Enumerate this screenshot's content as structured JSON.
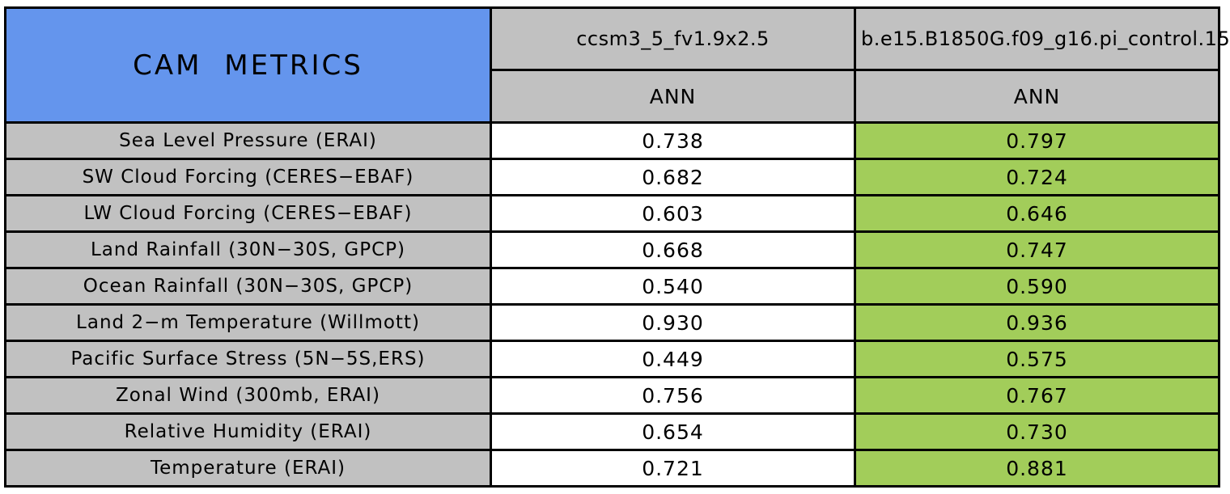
{
  "table": {
    "title": "CAM METRICS",
    "columns": [
      {
        "model": "ccsm3_5_fv1.9x2.5",
        "season": "ANN"
      },
      {
        "model": "b.e15.B1850G.f09_g16.pi_control.15",
        "season": "ANN"
      }
    ],
    "rows": [
      {
        "metric": "Sea Level Pressure (ERAI)",
        "values": [
          "0.738",
          "0.797"
        ]
      },
      {
        "metric": "SW Cloud Forcing (CERES−EBAF)",
        "values": [
          "0.682",
          "0.724"
        ]
      },
      {
        "metric": "LW Cloud Forcing (CERES−EBAF)",
        "values": [
          "0.603",
          "0.646"
        ]
      },
      {
        "metric": "Land Rainfall (30N−30S, GPCP)",
        "values": [
          "0.668",
          "0.747"
        ]
      },
      {
        "metric": "Ocean Rainfall (30N−30S, GPCP)",
        "values": [
          "0.540",
          "0.590"
        ]
      },
      {
        "metric": "Land 2−m Temperature (Willmott)",
        "values": [
          "0.930",
          "0.936"
        ]
      },
      {
        "metric": "Pacific Surface Stress (5N−5S,ERS)",
        "values": [
          "0.449",
          "0.575"
        ]
      },
      {
        "metric": "Zonal Wind (300mb, ERAI)",
        "values": [
          "0.756",
          "0.767"
        ]
      },
      {
        "metric": "Relative Humidity (ERAI)",
        "values": [
          "0.654",
          "0.730"
        ]
      },
      {
        "metric": "Temperature (ERAI)",
        "values": [
          "0.721",
          "0.881"
        ]
      }
    ],
    "colors": {
      "title_bg": "#6495ED",
      "header_bg": "#C1C1C1",
      "label_bg": "#C1C1C1",
      "col1_bg": "#FFFFFF",
      "col2_bg": "#A2CD5A",
      "border": "#000000"
    }
  },
  "chart_data": {
    "type": "table",
    "title": "CAM METRICS",
    "column_groups": [
      "ccsm3_5_fv1.9x2.5",
      "b.e15.B1850G.f09_g16.pi_control.15"
    ],
    "subheaders": [
      "ANN",
      "ANN"
    ],
    "row_labels": [
      "Sea Level Pressure (ERAI)",
      "SW Cloud Forcing (CERES−EBAF)",
      "LW Cloud Forcing (CERES−EBAF)",
      "Land Rainfall (30N−30S, GPCP)",
      "Ocean Rainfall (30N−30S, GPCP)",
      "Land 2−m Temperature (Willmott)",
      "Pacific Surface Stress (5N−5S,ERS)",
      "Zonal Wind (300mb, ERAI)",
      "Relative Humidity (ERAI)",
      "Temperature (ERAI)"
    ],
    "series": [
      {
        "name": "ccsm3_5_fv1.9x2.5",
        "values": [
          0.738,
          0.682,
          0.603,
          0.668,
          0.54,
          0.93,
          0.449,
          0.756,
          0.654,
          0.721
        ]
      },
      {
        "name": "b.e15.B1850G.f09_g16.pi_control.15",
        "values": [
          0.797,
          0.724,
          0.646,
          0.747,
          0.59,
          0.936,
          0.575,
          0.767,
          0.73,
          0.881
        ]
      }
    ],
    "layout_hints": {
      "second_series_cells_shaded": "#A2CD5A",
      "first_series_cells_shaded": "#FFFFFF",
      "grid": "black cell borders",
      "last_column_header_clipped_at_right_edge": true
    }
  }
}
